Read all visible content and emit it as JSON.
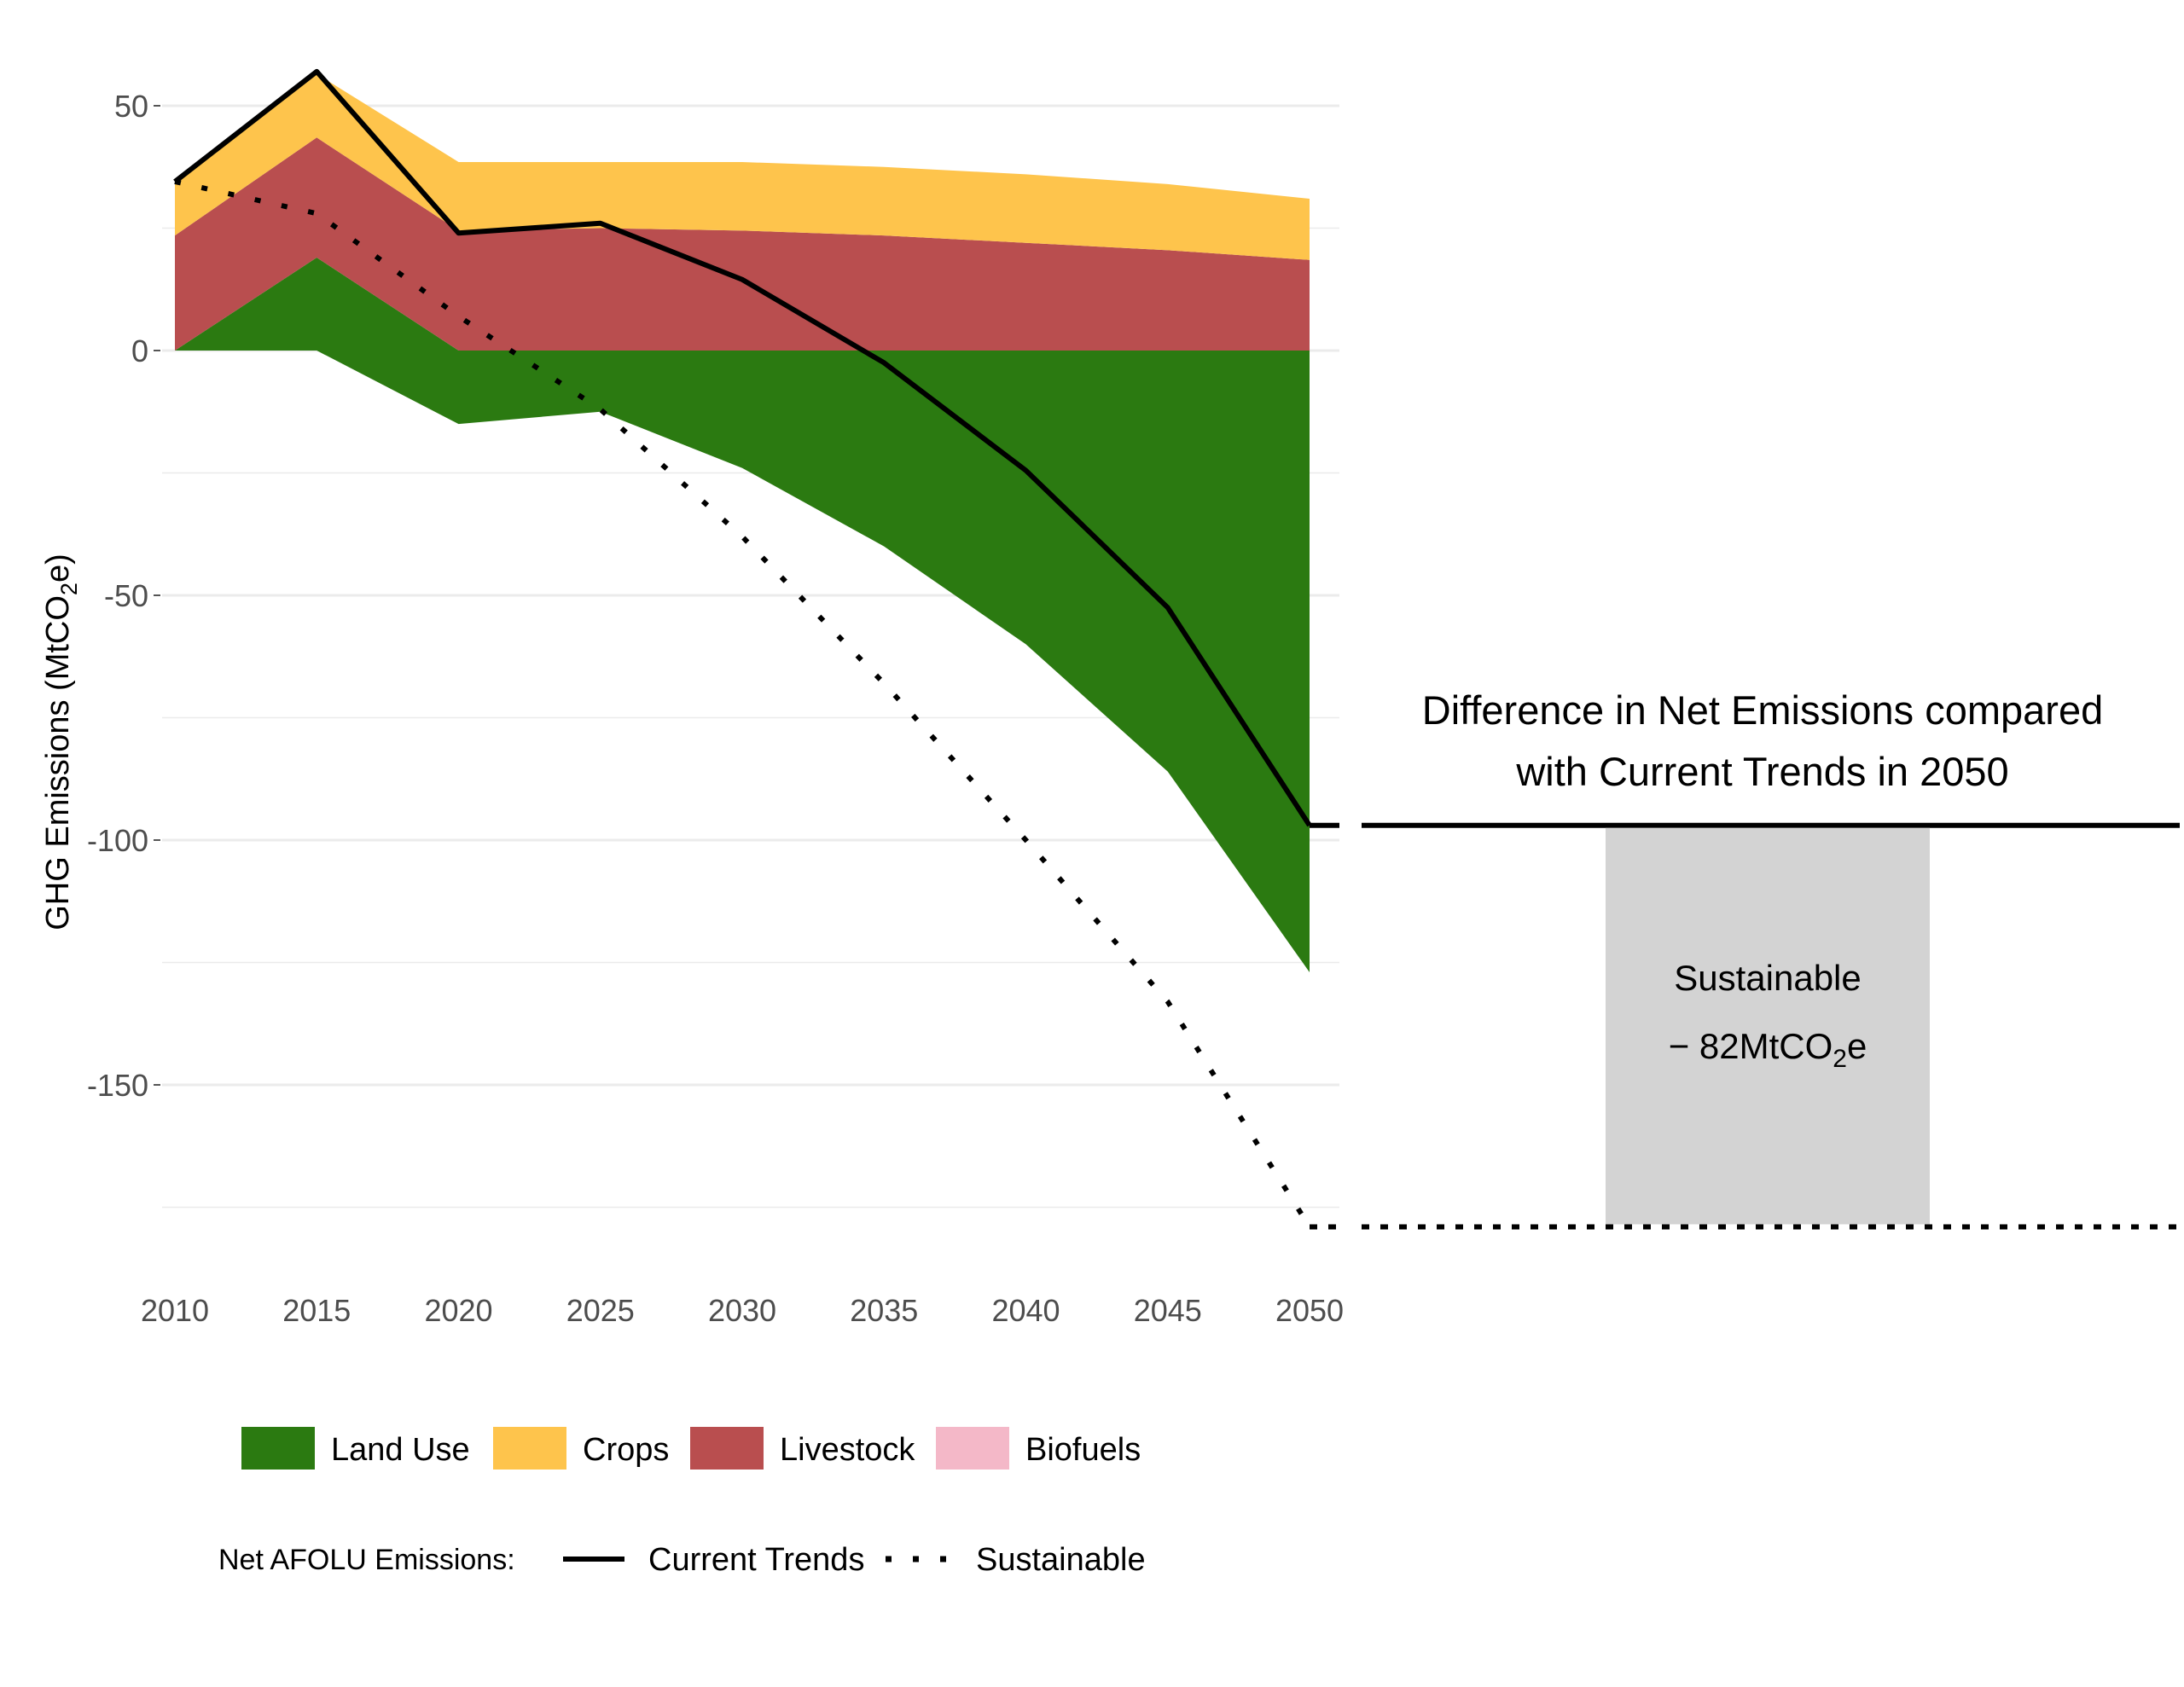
{
  "chart_data": {
    "type": "area",
    "title": "",
    "xlabel": "",
    "ylabel": "GHG Emissions (MtCO",
    "ylabel_sub": "2",
    "ylabel_end": "e)",
    "x": [
      2010,
      2015,
      2020,
      2025,
      2030,
      2035,
      2040,
      2045,
      2050
    ],
    "x_tick_labels": [
      "2010",
      "2015",
      "2020",
      "2025",
      "2030",
      "2035",
      "2040",
      "2045",
      "2050"
    ],
    "ylim": [
      -185,
      62
    ],
    "y_ticks": [
      50,
      0,
      -50,
      -100,
      -150
    ],
    "y_tick_labels": [
      "50",
      "0",
      "-50",
      "-100",
      "-150"
    ],
    "grid": true,
    "colors": {
      "land_use": "#2b7a11",
      "crops": "#fec44c",
      "livestock": "#b94e4f",
      "biofuels": "#f4b8c8",
      "gap_bar": "#d3d3d3",
      "line": "#000000",
      "grid": "#ebebeb"
    },
    "series": [
      {
        "name": "Land Use",
        "key": "land_use",
        "positive": [
          0,
          19,
          0,
          0,
          0,
          0,
          0,
          0,
          0
        ],
        "negative": [
          0,
          0,
          -15,
          -12.5,
          -24,
          -40,
          -60,
          -86,
          -127
        ]
      },
      {
        "name": "Livestock",
        "key": "livestock",
        "values": [
          23.5,
          24.5,
          24.5,
          25,
          24.5,
          23.5,
          22,
          20.5,
          18.5
        ]
      },
      {
        "name": "Crops",
        "key": "crops",
        "values": [
          10.5,
          13,
          14,
          13.5,
          14,
          14,
          14,
          13.5,
          12.5
        ]
      },
      {
        "name": "Biofuels",
        "key": "biofuels",
        "values": [
          0,
          0,
          0,
          0,
          0,
          0,
          0,
          0,
          0
        ]
      }
    ],
    "lines": [
      {
        "name": "Current Trends",
        "style": "solid",
        "values": [
          34.5,
          57,
          24,
          26,
          14.5,
          -2.5,
          -24.5,
          -52.5,
          -97
        ]
      },
      {
        "name": "Sustainable",
        "style": "dotted",
        "values": [
          34.5,
          28,
          7,
          -12,
          -38,
          -68,
          -100,
          -133,
          -179
        ]
      }
    ],
    "legend": {
      "placement": "bottom",
      "fill_entries": [
        "Land Use",
        "Crops",
        "Livestock",
        "Biofuels"
      ],
      "line_title": "Net AFOLU Emissions:",
      "line_entries": [
        "Current Trends",
        "Sustainable"
      ]
    },
    "annotation": {
      "title_line1": "Difference in Net Emissions compared",
      "title_line2": "with Current Trends in 2050",
      "current_trends_2050": -97,
      "sustainable_2050": -179,
      "bar_label": "Sustainable",
      "bar_value_prefix": "− 82MtCO",
      "bar_value_sub": "2",
      "bar_value_suffix": "e"
    }
  }
}
